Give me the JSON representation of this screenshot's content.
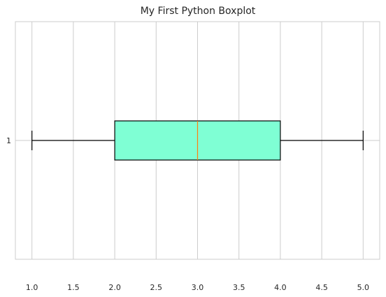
{
  "chart_data": {
    "type": "boxplot",
    "orientation": "horizontal",
    "title": "My First Python Boxplot",
    "xlabel": "",
    "ylabel": "",
    "xlim": [
      0.8,
      5.2
    ],
    "xticks": [
      "1.0",
      "1.5",
      "2.0",
      "2.5",
      "3.0",
      "3.5",
      "4.0",
      "4.5",
      "5.0"
    ],
    "yticks": [
      "1"
    ],
    "grid": true,
    "boxes": [
      {
        "category": "1",
        "whisker_low": 1.0,
        "q1": 2.0,
        "median": 3.0,
        "q3": 4.0,
        "whisker_high": 5.0
      }
    ],
    "colors": {
      "box_fill": "#7fffd4",
      "box_edge": "#000000",
      "median": "#ff7f0e",
      "grid": "#cccccc",
      "axes_edge": "#cccccc"
    }
  }
}
